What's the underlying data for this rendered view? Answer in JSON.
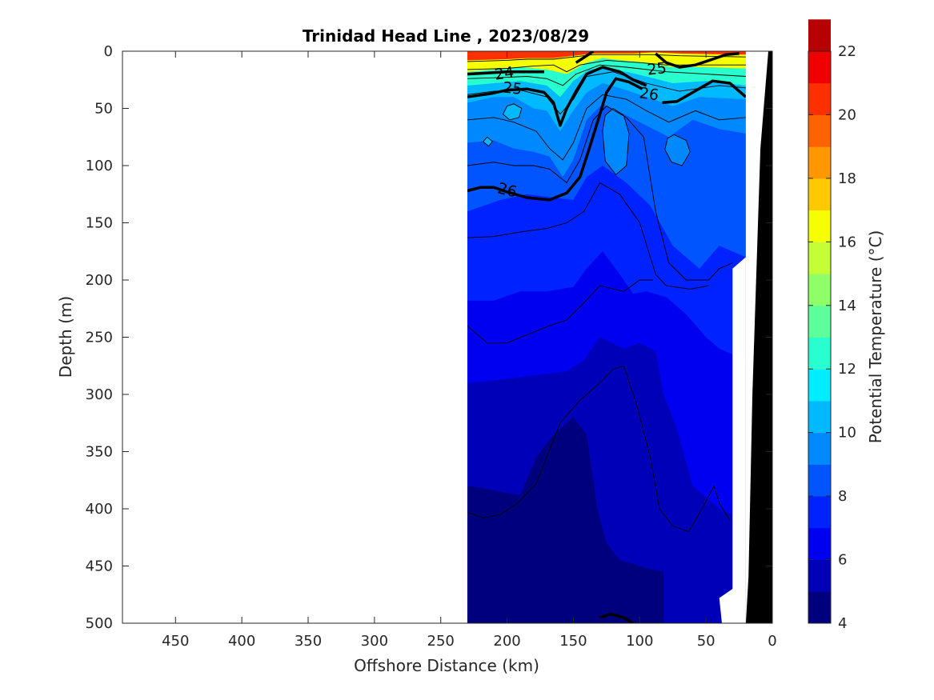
{
  "chart_data": {
    "type": "heatmap",
    "subtype": "filled-contour-section",
    "title": "Trinidad Head Line , 2023/08/29",
    "xlabel": "Offshore Distance (km)",
    "ylabel": "Depth (m)",
    "colorbar_label": "Potential Temperature (°C)",
    "xlim": [
      490,
      0
    ],
    "x_reversed": true,
    "ylim": [
      0,
      500
    ],
    "y_reversed": true,
    "x_ticks": [
      450,
      400,
      350,
      300,
      250,
      200,
      150,
      100,
      50,
      0
    ],
    "y_ticks": [
      0,
      50,
      100,
      150,
      200,
      250,
      300,
      350,
      400,
      450,
      500
    ],
    "colorbar": {
      "min": 4,
      "max": 22,
      "step": 1,
      "ticks": [
        4,
        6,
        8,
        10,
        12,
        14,
        16,
        18,
        20,
        22
      ],
      "colors": [
        "#00007f",
        "#0000b8",
        "#0000f0",
        "#0022ff",
        "#0055ff",
        "#0088ff",
        "#00b9ff",
        "#00edff",
        "#29ffce",
        "#5dff9a",
        "#8eff69",
        "#c3ff34",
        "#f6ff01",
        "#ffc900",
        "#ff9700",
        "#ff6200",
        "#ff3000",
        "#f00000",
        "#b70000"
      ]
    },
    "section_x_range": [
      230,
      20
    ],
    "density_contour_labels": [
      24,
      25,
      25,
      26,
      26
    ],
    "temperature_bands": [
      {
        "label": "20-22",
        "min_temp": 20,
        "max_temp": 22
      },
      {
        "label": "16-20",
        "min_temp": 16,
        "max_temp": 20
      },
      {
        "label": "12-16",
        "min_temp": 12,
        "max_temp": 16
      },
      {
        "label": "10-12",
        "min_temp": 10,
        "max_temp": 12
      },
      {
        "label": "9-10",
        "min_temp": 9,
        "max_temp": 10
      },
      {
        "label": "8-9",
        "min_temp": 8,
        "max_temp": 9
      },
      {
        "label": "7-8",
        "min_temp": 7,
        "max_temp": 8
      },
      {
        "label": "6-7",
        "min_temp": 6,
        "max_temp": 7
      },
      {
        "label": "5-6",
        "min_temp": 5,
        "max_temp": 6
      },
      {
        "label": "4-5",
        "min_temp": 4,
        "max_temp": 5
      }
    ],
    "grid": false,
    "bathymetry_color": "#000000"
  }
}
